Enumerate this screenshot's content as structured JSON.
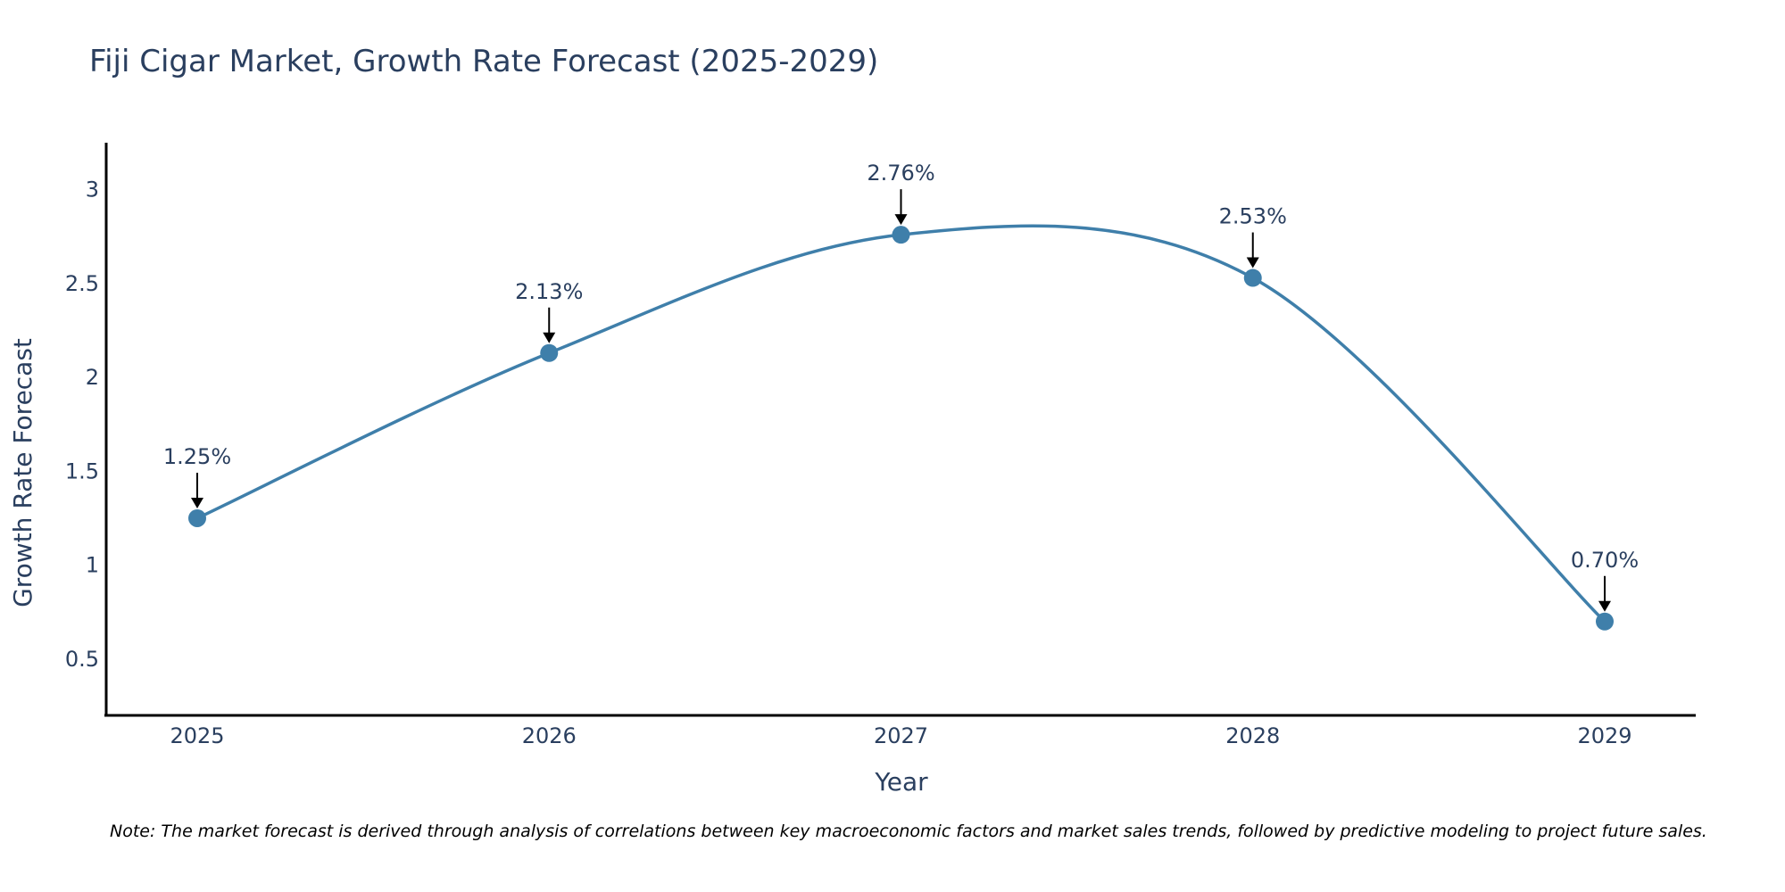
{
  "chart_data": {
    "type": "line",
    "title": "Fiji Cigar Market, Growth Rate Forecast (2025-2029)",
    "xlabel": "Year",
    "ylabel": "Growth Rate Forecast",
    "categories": [
      "2025",
      "2026",
      "2027",
      "2028",
      "2029"
    ],
    "series": [
      {
        "name": "Growth Rate Forecast",
        "values": [
          1.25,
          2.13,
          2.76,
          2.53,
          0.7
        ],
        "labels": [
          "1.25%",
          "2.13%",
          "2.76%",
          "2.53%",
          "0.70%"
        ]
      }
    ],
    "ylim": [
      0.2,
      3.25
    ],
    "yticks": [
      0.5,
      1,
      1.5,
      2,
      2.5,
      3
    ],
    "ytick_labels": [
      "0.5",
      "1",
      "1.5",
      "2",
      "2.5",
      "3"
    ],
    "grid": false,
    "line_shape": "spline",
    "colors": {
      "line": "#3f7faa",
      "marker": "#3f7faa",
      "axis": "#000000",
      "text": "#2a3f5f",
      "arrow": "#000000"
    },
    "note": "Note: The market forecast is derived through analysis of correlations between key macroeconomic factors and market sales trends, followed by predictive modeling to project future sales."
  }
}
